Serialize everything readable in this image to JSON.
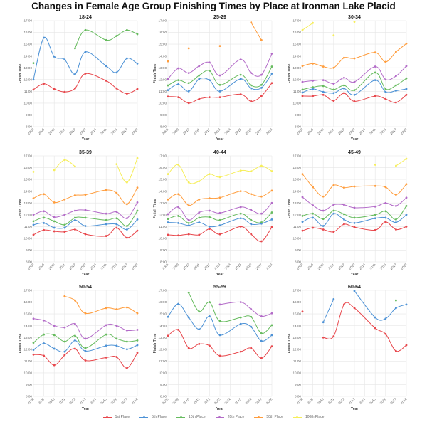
{
  "title": "Changes in Female Age Group Finishing Times by Place at Ironman Lake Placid",
  "chart_data": {
    "type": "line",
    "layout": "3x3 small multiples",
    "xlabel": "Year",
    "ylabel": "Finish Time",
    "x_ticks": [
      "2008",
      "2009",
      "2010",
      "2011",
      "2012",
      "2013",
      "2014",
      "2015",
      "2016",
      "2017",
      "2018"
    ],
    "y_ticks": [
      "8:00",
      "9:00",
      "10:00",
      "11:00",
      "12:00",
      "13:00",
      "14:00",
      "15:00",
      "16:00",
      "17:00"
    ],
    "y_unit": "hours",
    "ylim": [
      8,
      17
    ],
    "grid": true,
    "smooth": true,
    "legend_position": "bottom",
    "years": [
      2008,
      2009,
      2010,
      2011,
      2012,
      2013,
      2015,
      2016,
      2017,
      2018
    ],
    "legend": [
      {
        "name": "1st Place",
        "color": "#e8474c"
      },
      {
        "name": "5th Place",
        "color": "#4d92d6"
      },
      {
        "name": "10th Place",
        "color": "#66bb5e"
      },
      {
        "name": "20th Place",
        "color": "#b36bc8"
      },
      {
        "name": "50th Place",
        "color": "#ff9d3d"
      },
      {
        "name": "100th Place",
        "color": "#f6ee5a"
      }
    ],
    "panels": [
      {
        "title": "18-24",
        "series": [
          {
            "name": "1st Place",
            "values": [
              11.15,
              11.65,
              11.2,
              10.95,
              11.25,
              12.5,
              11.9,
              11.25,
              10.8,
              11.2
            ]
          },
          {
            "name": "5th Place",
            "values": [
              12.0,
              15.55,
              13.95,
              13.7,
              12.45,
              14.35,
              13.15,
              12.6,
              13.8,
              13.35
            ]
          },
          {
            "name": "10th Place",
            "values": [
              13.4,
              null,
              null,
              null,
              14.65,
              16.2,
              15.35,
              15.7,
              16.2,
              15.85
            ]
          }
        ]
      },
      {
        "title": "25-29",
        "series": [
          {
            "name": "1st Place",
            "values": [
              10.55,
              10.5,
              10.0,
              10.35,
              10.5,
              10.5,
              10.75,
              10.15,
              10.6,
              11.7
            ]
          },
          {
            "name": "5th Place",
            "values": [
              11.1,
              11.6,
              11.0,
              12.05,
              11.95,
              11.0,
              12.05,
              11.25,
              11.3,
              12.5
            ]
          },
          {
            "name": "10th Place",
            "values": [
              11.5,
              11.95,
              11.7,
              12.35,
              12.75,
              11.55,
              12.4,
              11.5,
              11.55,
              13.1
            ]
          },
          {
            "name": "20th Place",
            "values": [
              12.05,
              12.95,
              12.55,
              13.15,
              13.45,
              12.35,
              13.7,
              12.55,
              12.4,
              14.2
            ]
          },
          {
            "name": "50th Place",
            "values": [
              13.55,
              null,
              14.65,
              null,
              null,
              14.85,
              null,
              16.85,
              15.35,
              null
            ]
          }
        ]
      },
      {
        "title": "30-34",
        "series": [
          {
            "name": "1st Place",
            "values": [
              10.6,
              10.6,
              10.7,
              10.2,
              10.85,
              10.15,
              10.6,
              10.35,
              10.05,
              10.7
            ]
          },
          {
            "name": "5th Place",
            "values": [
              10.9,
              11.2,
              10.95,
              10.85,
              11.25,
              10.7,
              11.95,
              10.95,
              11.05,
              11.2
            ]
          },
          {
            "name": "10th Place",
            "values": [
              11.15,
              11.35,
              11.45,
              11.15,
              11.5,
              11.1,
              12.6,
              11.2,
              11.5,
              12.1
            ]
          },
          {
            "name": "20th Place",
            "values": [
              11.8,
              11.9,
              11.95,
              11.65,
              12.15,
              11.8,
              13.1,
              12.0,
              12.3,
              13.15
            ]
          },
          {
            "name": "50th Place",
            "values": [
              13.15,
              13.35,
              13.1,
              13.0,
              13.85,
              13.8,
              14.3,
              13.5,
              14.35,
              15.05
            ]
          },
          {
            "name": "100th Place",
            "values": [
              16.2,
              16.8,
              null,
              15.75,
              null,
              16.9,
              null,
              null,
              null,
              null
            ]
          }
        ]
      },
      {
        "title": "35-39",
        "series": [
          {
            "name": "1st Place",
            "values": [
              10.3,
              10.7,
              10.6,
              10.55,
              10.75,
              10.35,
              10.2,
              10.9,
              10.05,
              10.65
            ]
          },
          {
            "name": "5th Place",
            "values": [
              11.15,
              11.3,
              10.9,
              10.9,
              11.55,
              11.05,
              11.2,
              11.2,
              10.75,
              11.6
            ]
          },
          {
            "name": "10th Place",
            "values": [
              11.45,
              11.75,
              11.45,
              11.15,
              11.75,
              11.75,
              11.55,
              11.7,
              11.05,
              12.35
            ]
          },
          {
            "name": "20th Place",
            "values": [
              12.0,
              12.3,
              11.8,
              12.0,
              12.35,
              12.4,
              12.1,
              12.25,
              11.7,
              13.05
            ]
          },
          {
            "name": "50th Place",
            "values": [
              13.4,
              13.75,
              13.05,
              13.3,
              13.65,
              13.7,
              14.1,
              13.85,
              12.9,
              14.3
            ]
          },
          {
            "name": "100th Place",
            "values": [
              15.65,
              null,
              15.8,
              16.65,
              16.1,
              null,
              null,
              16.3,
              14.75,
              16.8
            ]
          }
        ]
      },
      {
        "title": "40-44",
        "series": [
          {
            "name": "1st Place",
            "values": [
              10.3,
              10.25,
              10.35,
              10.3,
              10.8,
              10.35,
              11.0,
              10.35,
              9.75,
              10.95
            ]
          },
          {
            "name": "5th Place",
            "values": [
              11.35,
              11.3,
              11.1,
              11.35,
              11.0,
              11.1,
              11.7,
              11.2,
              11.25,
              11.6
            ]
          },
          {
            "name": "10th Place",
            "values": [
              11.65,
              11.9,
              11.3,
              11.75,
              11.8,
              11.55,
              12.1,
              11.55,
              11.35,
              12.2
            ]
          },
          {
            "name": "20th Place",
            "values": [
              12.05,
              12.65,
              11.55,
              12.2,
              12.35,
              12.15,
              12.65,
              12.4,
              12.1,
              13.0
            ]
          },
          {
            "name": "50th Place",
            "values": [
              13.3,
              13.75,
              12.8,
              13.3,
              13.4,
              13.45,
              14.0,
              13.75,
              13.55,
              14.05
            ]
          },
          {
            "name": "100th Place",
            "values": [
              15.45,
              16.25,
              14.75,
              14.85,
              15.45,
              15.2,
              15.75,
              15.7,
              16.15,
              15.7
            ]
          }
        ]
      },
      {
        "title": "45-49",
        "series": [
          {
            "name": "1st Place",
            "values": [
              10.65,
              10.9,
              10.75,
              10.55,
              11.2,
              10.95,
              10.7,
              11.4,
              10.75,
              11.0
            ]
          },
          {
            "name": "5th Place",
            "values": [
              11.4,
              11.75,
              11.05,
              12.1,
              11.6,
              11.3,
              11.7,
              11.75,
              11.35,
              12.0
            ]
          },
          {
            "name": "10th Place",
            "values": [
              11.9,
              12.1,
              11.65,
              12.35,
              12.05,
              11.75,
              12.0,
              12.3,
              11.6,
              12.75
            ]
          },
          {
            "name": "20th Place",
            "values": [
              13.5,
              12.8,
              12.35,
              12.85,
              12.85,
              12.6,
              12.7,
              13.0,
              12.75,
              13.45
            ]
          },
          {
            "name": "50th Place",
            "values": [
              15.45,
              14.35,
              13.55,
              14.5,
              14.3,
              14.4,
              14.45,
              14.35,
              13.7,
              14.6
            ]
          },
          {
            "name": "100th Place",
            "values": [
              null,
              null,
              null,
              null,
              null,
              null,
              16.25,
              null,
              16.15,
              16.75
            ]
          }
        ]
      },
      {
        "title": "50-54",
        "series": [
          {
            "name": "1st Place",
            "values": [
              11.55,
              11.45,
              10.65,
              11.5,
              12.05,
              11.05,
              11.3,
              11.35,
              10.4,
              11.7
            ]
          },
          {
            "name": "5th Place",
            "values": [
              11.95,
              12.5,
              12.05,
              11.8,
              12.75,
              11.85,
              12.3,
              12.3,
              12.0,
              12.35
            ]
          },
          {
            "name": "10th Place",
            "values": [
              12.55,
              13.25,
              13.2,
              12.65,
              13.15,
              12.1,
              13.25,
              12.9,
              12.65,
              12.75
            ]
          },
          {
            "name": "20th Place",
            "values": [
              14.6,
              14.45,
              14.0,
              13.85,
              14.15,
              12.9,
              14.05,
              14.0,
              13.6,
              13.65
            ]
          },
          {
            "name": "50th Place",
            "values": [
              null,
              null,
              null,
              16.5,
              16.15,
              15.05,
              15.5,
              15.4,
              15.55,
              15.05
            ]
          }
        ]
      },
      {
        "title": "55-59",
        "series": [
          {
            "name": "1st Place",
            "values": [
              13.15,
              13.65,
              12.1,
              12.45,
              12.3,
              11.45,
              11.8,
              12.1,
              11.25,
              12.25
            ]
          },
          {
            "name": "5th Place",
            "values": [
              14.75,
              15.85,
              14.7,
              13.7,
              14.8,
              13.2,
              14.15,
              13.9,
              12.7,
              13.2
            ]
          },
          {
            "name": "10th Place",
            "values": [
              null,
              null,
              16.8,
              15.2,
              16.0,
              14.4,
              14.7,
              14.75,
              13.35,
              14.05
            ]
          },
          {
            "name": "20th Place",
            "values": [
              null,
              null,
              null,
              null,
              null,
              15.8,
              16.0,
              15.4,
              14.8,
              15.05
            ]
          }
        ]
      },
      {
        "title": "60-64",
        "series": [
          {
            "name": "1st Place",
            "values": [
              15.2,
              null,
              13.0,
              13.1,
              15.8,
              15.5,
              13.8,
              13.3,
              11.85,
              12.35
            ]
          },
          {
            "name": "5th Place",
            "values": [
              null,
              null,
              14.3,
              16.25,
              null,
              16.95,
              14.7,
              14.6,
              15.5,
              15.8
            ]
          },
          {
            "name": "10th Place",
            "values": [
              null,
              null,
              null,
              null,
              null,
              null,
              null,
              null,
              16.15,
              null
            ]
          }
        ]
      }
    ]
  }
}
